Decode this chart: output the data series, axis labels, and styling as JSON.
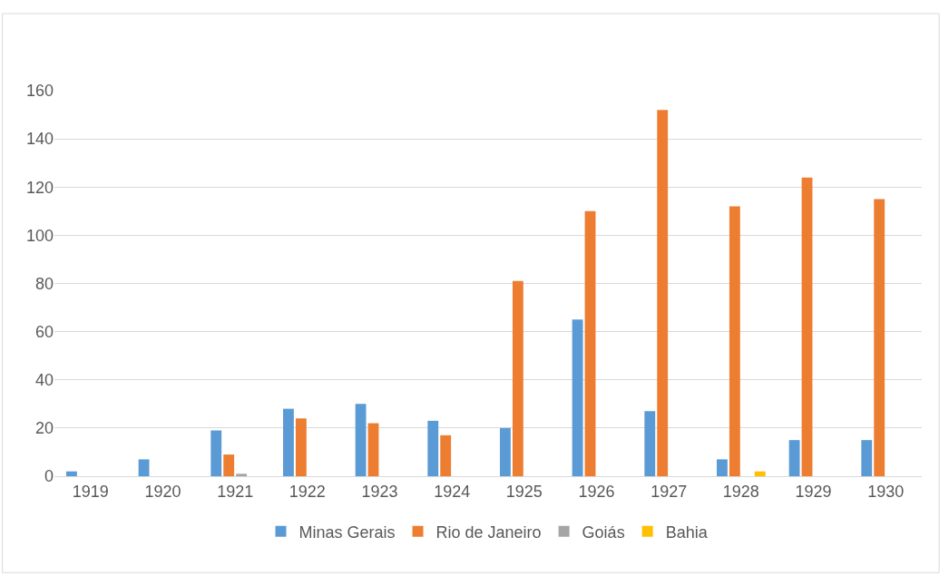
{
  "chart_data": {
    "type": "bar",
    "categories": [
      "1919",
      "1920",
      "1921",
      "1922",
      "1923",
      "1924",
      "1925",
      "1926",
      "1927",
      "1928",
      "1929",
      "1930"
    ],
    "series": [
      {
        "name": "Minas Gerais",
        "color": "#5b9bd5",
        "values": [
          2,
          7,
          19,
          28,
          30,
          23,
          20,
          65,
          27,
          7,
          15,
          15
        ]
      },
      {
        "name": "Rio de Janeiro",
        "color": "#ed7d31",
        "values": [
          null,
          null,
          9,
          24,
          22,
          17,
          81,
          110,
          152,
          112,
          124,
          115
        ]
      },
      {
        "name": "Goiás",
        "color": "#a5a5a5",
        "values": [
          null,
          null,
          1,
          null,
          null,
          null,
          null,
          null,
          null,
          null,
          null,
          null
        ]
      },
      {
        "name": "Bahia",
        "color": "#ffc000",
        "values": [
          null,
          null,
          null,
          null,
          null,
          null,
          null,
          null,
          null,
          2,
          null,
          null
        ]
      }
    ],
    "ylim": [
      0,
      160
    ],
    "yticks": [
      0,
      20,
      40,
      60,
      80,
      100,
      120,
      140,
      160
    ],
    "grid": "y",
    "legend": "bottom"
  }
}
